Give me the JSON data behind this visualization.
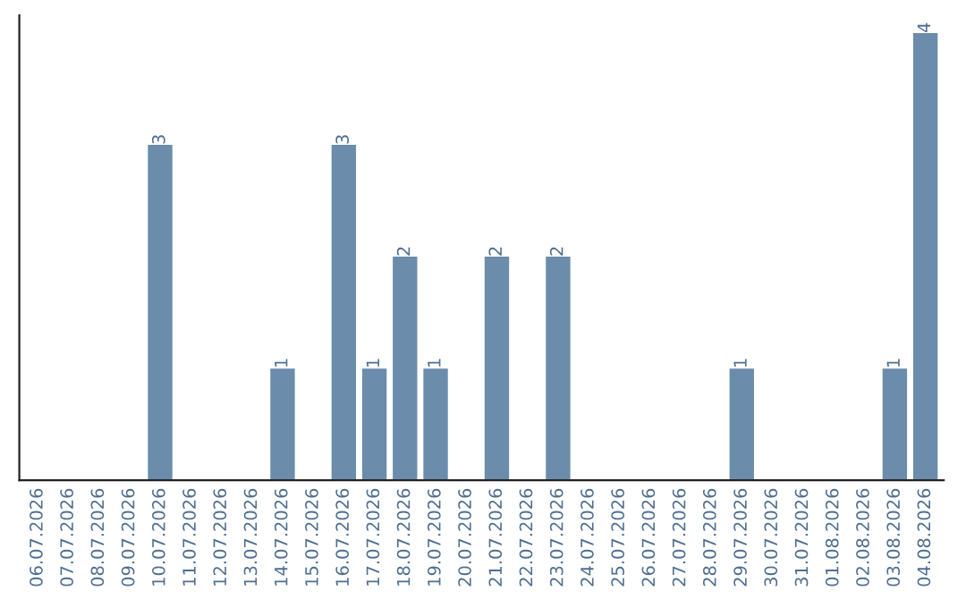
{
  "chart_data": {
    "type": "bar",
    "categories": [
      "06.07.2026",
      "07.07.2026",
      "08.07.2026",
      "09.07.2026",
      "10.07.2026",
      "11.07.2026",
      "12.07.2026",
      "13.07.2026",
      "14.07.2026",
      "15.07.2026",
      "16.07.2026",
      "17.07.2026",
      "18.07.2026",
      "19.07.2026",
      "20.07.2026",
      "21.07.2026",
      "22.07.2026",
      "23.07.2026",
      "24.07.2026",
      "25.07.2026",
      "26.07.2026",
      "27.07.2026",
      "28.07.2026",
      "29.07.2026",
      "30.07.2026",
      "31.07.2026",
      "01.08.2026",
      "02.08.2026",
      "03.08.2026",
      "04.08.2026"
    ],
    "values": [
      0,
      0,
      0,
      0,
      3,
      0,
      0,
      0,
      1,
      0,
      3,
      1,
      2,
      1,
      0,
      2,
      0,
      2,
      0,
      0,
      0,
      0,
      0,
      1,
      0,
      0,
      0,
      0,
      1,
      4
    ],
    "value_labels": [
      null,
      null,
      null,
      null,
      "3",
      null,
      null,
      null,
      "1",
      null,
      "3",
      "1",
      "2",
      "1",
      null,
      "2",
      null,
      "2",
      null,
      null,
      null,
      null,
      null,
      "1",
      null,
      null,
      null,
      null,
      "1",
      "4"
    ],
    "color": "#6b8cab",
    "grid": false,
    "legend": false
  }
}
